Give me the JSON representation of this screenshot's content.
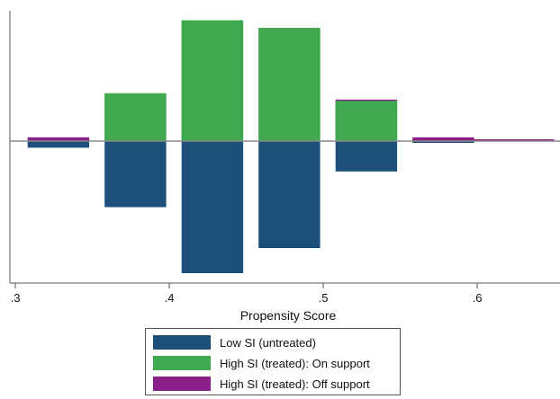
{
  "chart_data": {
    "type": "bar",
    "title": "",
    "xlabel": "Propensity Score",
    "ylabel": "",
    "xlim": [
      0.3,
      0.65
    ],
    "ylim": [
      -1.0,
      1.0
    ],
    "x_ticks": [
      ".3",
      ".4",
      ".5",
      ".6"
    ],
    "x_tick_values": [
      0.3,
      0.4,
      0.5,
      0.6
    ],
    "bin_width": 0.04,
    "grid": false,
    "legend_position": "bottom",
    "series": [
      {
        "name": "Low SI (untreated)",
        "color": "#1c4f7a",
        "direction": "down",
        "bins": [
          {
            "start": 0.308,
            "end": 0.348,
            "value": 0.05
          },
          {
            "start": 0.358,
            "end": 0.398,
            "value": 0.5
          },
          {
            "start": 0.408,
            "end": 0.448,
            "value": 1.0
          },
          {
            "start": 0.458,
            "end": 0.498,
            "value": 0.81
          },
          {
            "start": 0.508,
            "end": 0.548,
            "value": 0.23
          },
          {
            "start": 0.558,
            "end": 0.598,
            "value": 0.01
          }
        ]
      },
      {
        "name": "High SI (treated): On support",
        "color": "#3ea94f",
        "direction": "up",
        "bins": [
          {
            "start": 0.308,
            "end": 0.348,
            "value": 0.02
          },
          {
            "start": 0.358,
            "end": 0.398,
            "value": 0.38
          },
          {
            "start": 0.408,
            "end": 0.448,
            "value": 0.96
          },
          {
            "start": 0.458,
            "end": 0.498,
            "value": 0.9
          },
          {
            "start": 0.508,
            "end": 0.548,
            "value": 0.32
          },
          {
            "start": 0.558,
            "end": 0.598,
            "value": 0.02
          }
        ]
      },
      {
        "name": "High SI (treated): Off support",
        "color": "#8a1f87",
        "direction": "up",
        "bins": [
          {
            "start": 0.308,
            "end": 0.348,
            "value": 0.03
          },
          {
            "start": 0.508,
            "end": 0.548,
            "value": 0.33
          },
          {
            "start": 0.558,
            "end": 0.598,
            "value": 0.03
          },
          {
            "start": 0.598,
            "end": 0.65,
            "value": 0.005
          }
        ]
      }
    ],
    "legend": [
      {
        "label": "Low SI (untreated)",
        "color": "#1c4f7a"
      },
      {
        "label": "High SI (treated): On support",
        "color": "#3ea94f"
      },
      {
        "label": "High SI (treated): Off support",
        "color": "#8a1f87"
      }
    ]
  }
}
